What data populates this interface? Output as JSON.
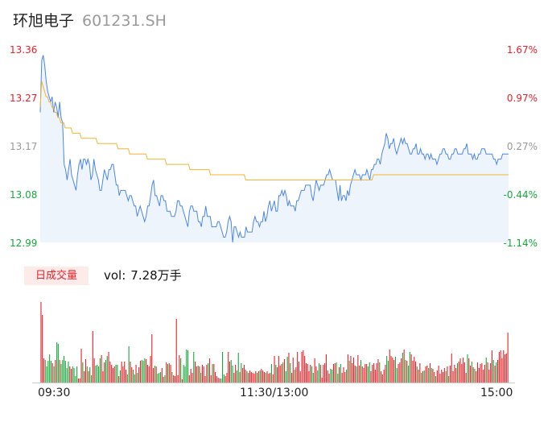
{
  "header": {
    "name": "环旭电子",
    "code": "601231.SH"
  },
  "volume_panel": {
    "tab_label": "日成交量",
    "vol_label": "vol:",
    "vol_value": "7.28万手"
  },
  "colors": {
    "price_line": "#4a86e8",
    "avg_line": "#f5b431",
    "up": "#e8222a",
    "down": "#17a83c",
    "flat": "#999999",
    "area": "#eef4fc"
  },
  "chart_data": [
    {
      "type": "line",
      "title": "",
      "xlabel": "",
      "ylabel": "",
      "ylim": [
        12.99,
        13.36
      ],
      "pct_lim": [
        -1.14,
        1.67
      ],
      "prev_close": 13.14,
      "y_ticks": [
        "13.36",
        "13.27",
        "13.17",
        "13.08",
        "12.99"
      ],
      "pct_ticks": [
        "1.67%",
        "0.97%",
        "0.27%",
        "-0.44%",
        "-1.14%"
      ],
      "x_ticks": [
        "09:30",
        "11:30/13:00",
        "15:00"
      ],
      "series": [
        {
          "values": [
            13.24,
            13.34,
            13.35,
            13.33,
            13.3,
            13.28,
            13.27,
            13.26,
            13.27,
            13.24,
            13.26,
            13.25,
            13.23,
            13.26,
            13.23,
            13.22,
            13.14,
            13.13,
            13.11,
            13.13,
            13.15,
            13.12,
            13.11,
            13.1,
            13.09,
            13.12,
            13.14,
            13.15,
            13.13,
            13.15,
            13.15,
            13.14,
            13.15,
            13.14,
            13.11,
            13.12,
            13.15,
            13.13,
            13.12,
            13.11,
            13.09,
            13.09,
            13.11,
            13.13,
            13.12,
            13.11,
            13.13,
            13.13,
            13.14,
            13.14,
            13.12,
            13.1,
            13.1,
            13.08,
            13.09,
            13.09,
            13.09,
            13.09,
            13.08,
            13.07,
            13.08,
            13.08,
            13.07,
            13.06,
            13.06,
            13.04,
            13.05,
            13.06,
            13.05,
            13.04,
            13.03,
            13.04,
            13.06,
            13.06,
            13.08,
            13.1,
            13.11,
            13.08,
            13.08,
            13.07,
            13.06,
            13.08,
            13.08,
            13.07,
            13.07,
            13.05,
            13.05,
            13.05,
            13.04,
            13.04,
            13.04,
            13.05,
            13.07,
            13.07,
            13.06,
            13.06,
            13.05,
            13.04,
            13.03,
            13.02,
            13.05,
            13.06,
            13.06,
            13.05,
            13.05,
            13.05,
            13.03,
            13.03,
            13.02,
            13.04,
            13.04,
            13.06,
            13.04,
            13.04,
            13.04,
            13.02,
            13.02,
            13.02,
            13.02,
            13.03,
            13.03,
            13.02,
            13.01,
            13.0,
            13.0,
            13.01,
            13.03,
            13.04,
            13.03,
            12.99,
            13.02,
            13.02,
            13.01,
            13.0,
            13.01,
            13.0,
            13.0,
            13.0,
            13.02,
            13.01,
            13.01,
            13.01,
            13.01,
            13.03,
            13.04,
            13.03,
            13.03,
            13.02,
            13.03,
            13.03,
            13.05,
            13.03,
            13.04,
            13.06,
            13.07,
            13.05,
            13.06,
            13.07,
            13.05,
            13.05,
            13.08,
            13.08,
            13.09,
            13.08,
            13.09,
            13.08,
            13.06,
            13.07,
            13.06,
            13.06,
            13.06,
            13.05,
            13.07,
            13.07,
            13.08,
            13.09,
            13.09,
            13.09,
            13.1,
            13.1,
            13.1,
            13.1,
            13.08,
            13.07,
            13.09,
            13.11,
            13.1,
            13.09,
            13.1,
            13.1,
            13.1,
            13.11,
            13.12,
            13.12,
            13.13,
            13.12,
            13.11,
            13.11,
            13.11,
            13.09,
            13.07,
            13.1,
            13.07,
            13.08,
            13.08,
            13.07,
            13.09,
            13.08,
            13.1,
            13.11,
            13.12,
            13.13,
            13.12,
            13.12,
            13.12,
            13.11,
            13.12,
            13.12,
            13.12,
            13.13,
            13.12,
            13.11,
            13.13,
            13.13,
            13.14,
            13.14,
            13.15,
            13.15,
            13.14,
            13.16,
            13.17,
            13.18,
            13.2,
            13.19,
            13.17,
            13.18,
            13.18,
            13.19,
            13.17,
            13.16,
            13.17,
            13.18,
            13.19,
            13.18,
            13.19,
            13.18,
            13.18,
            13.17,
            13.16,
            13.16,
            13.17,
            13.17,
            13.18,
            13.16,
            13.16,
            13.17,
            13.16,
            13.16,
            13.15,
            13.16,
            13.16,
            13.15,
            13.16,
            13.15,
            13.15,
            13.15,
            13.14,
            13.15,
            13.16,
            13.16,
            13.17,
            13.17,
            13.16,
            13.16,
            13.15,
            13.15,
            13.16,
            13.16,
            13.17,
            13.17,
            13.16,
            13.16,
            13.16,
            13.16,
            13.17,
            13.17,
            13.18,
            13.16,
            13.16,
            13.16,
            13.15,
            13.16,
            13.15,
            13.15,
            13.16,
            13.16,
            13.17,
            13.17,
            13.17,
            13.16,
            13.16,
            13.16,
            13.16,
            13.16,
            13.15,
            13.15,
            13.14,
            13.15,
            13.15,
            13.15,
            13.16,
            13.16,
            13.16,
            13.16,
            13.16
          ]
        },
        {
          "values": [
            13.25,
            13.3,
            13.29,
            13.28,
            13.27,
            13.27,
            13.26,
            13.26,
            13.25,
            13.25,
            13.24,
            13.24,
            13.23,
            13.23,
            13.22,
            13.22,
            13.22,
            13.21,
            13.21,
            13.21,
            13.21,
            13.21,
            13.2,
            13.2,
            13.2,
            13.2,
            13.2,
            13.2,
            13.19,
            13.19,
            13.19,
            13.19,
            13.19,
            13.19,
            13.19,
            13.19,
            13.19,
            13.19,
            13.19,
            13.18,
            13.18,
            13.18,
            13.18,
            13.18,
            13.18,
            13.18,
            13.18,
            13.18,
            13.18,
            13.18,
            13.18,
            13.18,
            13.18,
            13.17,
            13.17,
            13.17,
            13.17,
            13.17,
            13.17,
            13.17,
            13.17,
            13.16,
            13.16,
            13.16,
            13.16,
            13.16,
            13.16,
            13.16,
            13.16,
            13.16,
            13.16,
            13.16,
            13.16,
            13.15,
            13.15,
            13.15,
            13.15,
            13.15,
            13.15,
            13.15,
            13.15,
            13.15,
            13.15,
            13.15,
            13.15,
            13.15,
            13.14,
            13.14,
            13.14,
            13.14,
            13.14,
            13.14,
            13.14,
            13.14,
            13.14,
            13.14,
            13.14,
            13.14,
            13.14,
            13.14,
            13.14,
            13.14,
            13.13,
            13.13,
            13.13,
            13.13,
            13.13,
            13.13,
            13.13,
            13.13,
            13.13,
            13.13,
            13.13,
            13.13,
            13.13,
            13.13,
            13.12,
            13.12,
            13.12,
            13.12,
            13.12,
            13.12,
            13.12,
            13.12,
            13.12,
            13.12,
            13.12,
            13.12,
            13.12,
            13.12,
            13.12,
            13.12,
            13.12,
            13.12,
            13.12,
            13.12,
            13.12,
            13.12,
            13.12,
            13.12,
            13.11,
            13.11,
            13.11,
            13.11,
            13.11,
            13.11,
            13.11,
            13.11,
            13.11,
            13.11,
            13.11,
            13.11,
            13.11,
            13.11,
            13.11,
            13.11,
            13.11,
            13.11,
            13.11,
            13.11,
            13.11,
            13.11,
            13.11,
            13.11,
            13.11,
            13.11,
            13.11,
            13.11,
            13.11,
            13.11,
            13.11,
            13.11,
            13.11,
            13.11,
            13.11,
            13.11,
            13.11,
            13.11,
            13.11,
            13.11,
            13.11,
            13.11,
            13.11,
            13.11,
            13.11,
            13.11,
            13.11,
            13.11,
            13.11,
            13.11,
            13.11,
            13.11,
            13.11,
            13.11,
            13.11,
            13.11,
            13.11,
            13.11,
            13.11,
            13.11,
            13.11,
            13.11,
            13.11,
            13.11,
            13.11,
            13.11,
            13.11,
            13.11,
            13.11,
            13.11,
            13.11,
            13.11,
            13.11,
            13.11,
            13.11,
            13.11,
            13.11,
            13.11,
            13.11,
            13.11,
            13.11,
            13.11,
            13.11,
            13.11,
            13.11,
            13.11,
            13.11,
            13.12,
            13.12,
            13.12,
            13.12,
            13.12,
            13.12,
            13.12,
            13.12,
            13.12,
            13.12,
            13.12,
            13.12,
            13.12,
            13.12,
            13.12,
            13.12,
            13.12,
            13.12,
            13.12,
            13.12,
            13.12,
            13.12,
            13.12,
            13.12,
            13.12,
            13.12,
            13.12,
            13.12,
            13.12,
            13.12,
            13.12,
            13.12,
            13.12,
            13.12,
            13.12,
            13.12,
            13.12,
            13.12,
            13.12,
            13.12,
            13.12,
            13.12,
            13.12,
            13.12,
            13.12,
            13.12,
            13.12,
            13.12,
            13.12,
            13.12,
            13.12,
            13.12,
            13.12,
            13.12,
            13.12,
            13.12,
            13.12,
            13.12,
            13.12,
            13.12,
            13.12,
            13.12,
            13.12,
            13.12,
            13.12,
            13.12,
            13.12,
            13.12,
            13.12,
            13.12,
            13.12,
            13.12,
            13.12,
            13.12,
            13.12,
            13.12,
            13.12,
            13.12,
            13.12,
            13.12,
            13.12,
            13.12,
            13.12,
            13.12,
            13.12,
            13.12,
            13.12,
            13.12,
            13.12,
            13.12,
            13.12,
            13.12,
            13.12
          ]
        }
      ]
    },
    {
      "type": "bar",
      "title": "",
      "xlabel": "",
      "ylabel": "",
      "ylim": [
        0,
        1
      ],
      "values": [
        1.0,
        0.84,
        0.3,
        0.28,
        0.2,
        0.27,
        0.35,
        0.27,
        0.24,
        0.2,
        0.28,
        0.5,
        0.48,
        0.28,
        0.23,
        0.28,
        0.33,
        0.27,
        0.18,
        0.26,
        0.2,
        0.17,
        0.2,
        0.18,
        0.08,
        0.2,
        0.05,
        0.05,
        0.42,
        0.25,
        0.14,
        0.29,
        0.2,
        0.14,
        0.19,
        0.09,
        0.64,
        0.3,
        0.21,
        0.22,
        0.2,
        0.3,
        0.34,
        0.14,
        0.25,
        0.28,
        0.33,
        0.38,
        0.26,
        0.22,
        0.18,
        0.2,
        0.22,
        0.22,
        0.08,
        0.15,
        0.26,
        0.2,
        0.26,
        0.16,
        0.1,
        0.45,
        0.26,
        0.19,
        0.16,
        0.1,
        0.22,
        0.12,
        0.19,
        0.27,
        0.28,
        0.27,
        0.3,
        0.29,
        0.22,
        0.2,
        0.33,
        0.6,
        0.18,
        0.21,
        0.2,
        0.11,
        0.12,
        0.13,
        0.18,
        0.07,
        0.09,
        0.25,
        0.23,
        0.24,
        0.22,
        0.13,
        0.09,
        0.08,
        0.79,
        0.09,
        0.34,
        0.3,
        0.04,
        0.22,
        0.2,
        0.41,
        0.4,
        0.09,
        0.17,
        0.12,
        0.38,
        0.26,
        0.2,
        0.21,
        0.2,
        0.12,
        0.22,
        0.2,
        0.08,
        0.22,
        0.24,
        0.3,
        0.09,
        0.23,
        0.23,
        0.13,
        0.08,
        0.06,
        0.05,
        0.05,
        0.38,
        0.1,
        0.08,
        0.12,
        0.38,
        0.26,
        0.28,
        0.21,
        0.12,
        0.22,
        0.15,
        0.37,
        0.13,
        0.24,
        0.18,
        0.22,
        0.16,
        0.14,
        0.12,
        0.15,
        0.13,
        0.12,
        0.11,
        0.14,
        0.12,
        0.14,
        0.15,
        0.17,
        0.15,
        0.13,
        0.12,
        0.14,
        0.11,
        0.12,
        0.23,
        0.1,
        0.33,
        0.22,
        0.19,
        0.33,
        0.21,
        0.23,
        0.25,
        0.29,
        0.14,
        0.32,
        0.37,
        0.24,
        0.12,
        0.31,
        0.16,
        0.19,
        0.38,
        0.26,
        0.14,
        0.38,
        0.4,
        0.33,
        0.24,
        0.23,
        0.14,
        0.22,
        0.2,
        0.12,
        0.3,
        0.2,
        0.15,
        0.24,
        0.22,
        0.06,
        0.22,
        0.24,
        0.35,
        0.15,
        0.11,
        0.17,
        0.16,
        0.23,
        0.24,
        0.25,
        0.11,
        0.19,
        0.23,
        0.12,
        0.19,
        0.13,
        0.16,
        0.35,
        0.27,
        0.33,
        0.24,
        0.31,
        0.21,
        0.2,
        0.34,
        0.21,
        0.28,
        0.2,
        0.18,
        0.23,
        0.23,
        0.2,
        0.25,
        0.14,
        0.22,
        0.24,
        0.16,
        0.24,
        0.29,
        0.25,
        0.14,
        0.1,
        0.16,
        0.22,
        0.33,
        0.27,
        0.41,
        0.33,
        0.31,
        0.28,
        0.32,
        0.18,
        0.23,
        0.25,
        0.3,
        0.37,
        0.41,
        0.28,
        0.27,
        0.21,
        0.38,
        0.35,
        0.27,
        0.32,
        0.26,
        0.2,
        0.16,
        0.24,
        0.12,
        0.14,
        0.15,
        0.2,
        0.21,
        0.18,
        0.24,
        0.18,
        0.17,
        0.13,
        0.08,
        0.15,
        0.21,
        0.11,
        0.16,
        0.13,
        0.18,
        0.14,
        0.2,
        0.08,
        0.21,
        0.36,
        0.14,
        0.22,
        0.18,
        0.24,
        0.26,
        0.3,
        0.23,
        0.31,
        0.25,
        0.12,
        0.35,
        0.3,
        0.21,
        0.26,
        0.19,
        0.17,
        0.14,
        0.25,
        0.18,
        0.23,
        0.24,
        0.16,
        0.22,
        0.31,
        0.25,
        0.16,
        0.24,
        0.4,
        0.28,
        0.21,
        0.25,
        0.28,
        0.38,
        0.4,
        0.3,
        0.4,
        0.35,
        0.36,
        0.62
      ],
      "x_ticks": [
        "09:30",
        "11:30/13:00",
        "15:00"
      ]
    }
  ]
}
